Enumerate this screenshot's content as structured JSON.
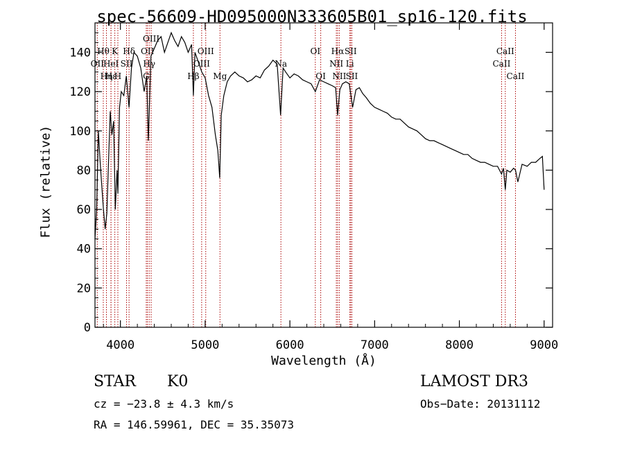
{
  "chart_data": {
    "type": "line",
    "title": "spec-56609-HD095000N333605B01_sp16-120.fits",
    "xlabel": "Wavelength (Å)",
    "ylabel": "Flux (relative)",
    "xlim": [
      3700,
      9100
    ],
    "ylim": [
      0,
      155
    ],
    "x_ticks": [
      4000,
      5000,
      6000,
      7000,
      8000,
      9000
    ],
    "y_ticks": [
      0,
      20,
      40,
      60,
      80,
      100,
      120,
      140
    ],
    "grid": false,
    "series": [
      {
        "name": "flux",
        "x": [
          3700,
          3720,
          3740,
          3760,
          3780,
          3800,
          3820,
          3840,
          3860,
          3880,
          3900,
          3920,
          3940,
          3960,
          3970,
          3990,
          4010,
          4040,
          4070,
          4102,
          4130,
          4160,
          4200,
          4240,
          4280,
          4310,
          4330,
          4360,
          4400,
          4440,
          4480,
          4520,
          4560,
          4600,
          4640,
          4680,
          4720,
          4760,
          4800,
          4840,
          4861,
          4880,
          4920,
          4960,
          5000,
          5040,
          5080,
          5120,
          5150,
          5172,
          5190,
          5220,
          5260,
          5300,
          5350,
          5400,
          5450,
          5500,
          5550,
          5600,
          5650,
          5700,
          5750,
          5800,
          5850,
          5890,
          5920,
          5950,
          6000,
          6050,
          6100,
          6150,
          6200,
          6250,
          6300,
          6350,
          6400,
          6450,
          6500,
          6540,
          6563,
          6590,
          6620,
          6660,
          6700,
          6740,
          6780,
          6820,
          6860,
          6900,
          6950,
          7000,
          7050,
          7100,
          7150,
          7200,
          7250,
          7300,
          7350,
          7400,
          7450,
          7500,
          7550,
          7600,
          7650,
          7700,
          7750,
          7800,
          7850,
          7900,
          7950,
          8000,
          8050,
          8100,
          8150,
          8200,
          8250,
          8300,
          8350,
          8400,
          8450,
          8498,
          8520,
          8542,
          8560,
          8600,
          8640,
          8662,
          8690,
          8740,
          8800,
          8850,
          8900,
          8950,
          8980,
          9000
        ],
        "values": [
          45,
          60,
          100,
          85,
          72,
          60,
          50,
          58,
          85,
          110,
          98,
          105,
          60,
          80,
          68,
          112,
          120,
          118,
          128,
          112,
          132,
          140,
          138,
          132,
          120,
          128,
          95,
          138,
          142,
          146,
          148,
          140,
          145,
          150,
          146,
          143,
          148,
          145,
          140,
          144,
          118,
          140,
          135,
          130,
          127,
          118,
          112,
          98,
          90,
          76,
          108,
          118,
          125,
          128,
          130,
          128,
          127,
          125,
          126,
          128,
          127,
          131,
          133,
          136,
          134,
          108,
          132,
          130,
          127,
          129,
          128,
          126,
          125,
          124,
          120,
          126,
          125,
          124,
          123,
          122,
          108,
          121,
          124,
          125,
          124,
          112,
          121,
          122,
          119,
          117,
          114,
          112,
          111,
          110,
          109,
          107,
          106,
          106,
          104,
          102,
          101,
          100,
          98,
          96,
          95,
          95,
          94,
          93,
          92,
          91,
          90,
          89,
          88,
          88,
          86,
          85,
          84,
          84,
          83,
          82,
          82,
          78,
          81,
          70,
          80,
          79,
          81,
          80,
          74,
          83,
          82,
          84,
          84,
          86,
          87,
          70
        ]
      }
    ],
    "line_markers": [
      {
        "label": "Hθ",
        "x": 3798,
        "row": 1
      },
      {
        "label": "OII",
        "x": 3727,
        "row": 2
      },
      {
        "label": "Hη",
        "x": 3835,
        "row": 3
      },
      {
        "label": "Hε",
        "x": 3889,
        "row": 3
      },
      {
        "label": "HeI",
        "x": 3889,
        "row": 2
      },
      {
        "label": "K",
        "x": 3934,
        "row": 1
      },
      {
        "label": "H",
        "x": 3970,
        "row": 3
      },
      {
        "label": "SII",
        "x": 4072,
        "row": 2
      },
      {
        "label": "Hδ",
        "x": 4102,
        "row": 1
      },
      {
        "label": "OII",
        "x": 4319,
        "row": 1
      },
      {
        "label": "Hγ",
        "x": 4340,
        "row": 2
      },
      {
        "label": "G",
        "x": 4305,
        "row": 3
      },
      {
        "label": "OIII",
        "x": 4363,
        "row": 0
      },
      {
        "label": "Hβ",
        "x": 4861,
        "row": 3
      },
      {
        "label": "OIII",
        "x": 4959,
        "row": 2
      },
      {
        "label": "OIII",
        "x": 5007,
        "row": 1
      },
      {
        "label": "Mg",
        "x": 5175,
        "row": 3
      },
      {
        "label": "Na",
        "x": 5894,
        "row": 2
      },
      {
        "label": "OI",
        "x": 6300,
        "row": 1
      },
      {
        "label": "OI",
        "x": 6364,
        "row": 3
      },
      {
        "label": "NII",
        "x": 6548,
        "row": 2
      },
      {
        "label": "Hα",
        "x": 6563,
        "row": 1
      },
      {
        "label": "NII",
        "x": 6583,
        "row": 3
      },
      {
        "label": "Li",
        "x": 6708,
        "row": 2
      },
      {
        "label": "SII",
        "x": 6717,
        "row": 1
      },
      {
        "label": "SII",
        "x": 6731,
        "row": 3
      },
      {
        "label": "CaII",
        "x": 8498,
        "row": 2
      },
      {
        "label": "CaII",
        "x": 8542,
        "row": 1
      },
      {
        "label": "CaII",
        "x": 8662,
        "row": 3
      }
    ],
    "colors": {
      "line": "#000000",
      "marker": "#aa0000",
      "axis": "#000000"
    }
  },
  "info": {
    "object_class": "STAR",
    "subclass": "K0",
    "survey": "LAMOST DR3",
    "cz": "cz = −23.8 ± 4.3 km/s",
    "obs_date": "Obs−Date: 20131112",
    "radec": "RA = 146.59961, DEC =  35.35073"
  }
}
